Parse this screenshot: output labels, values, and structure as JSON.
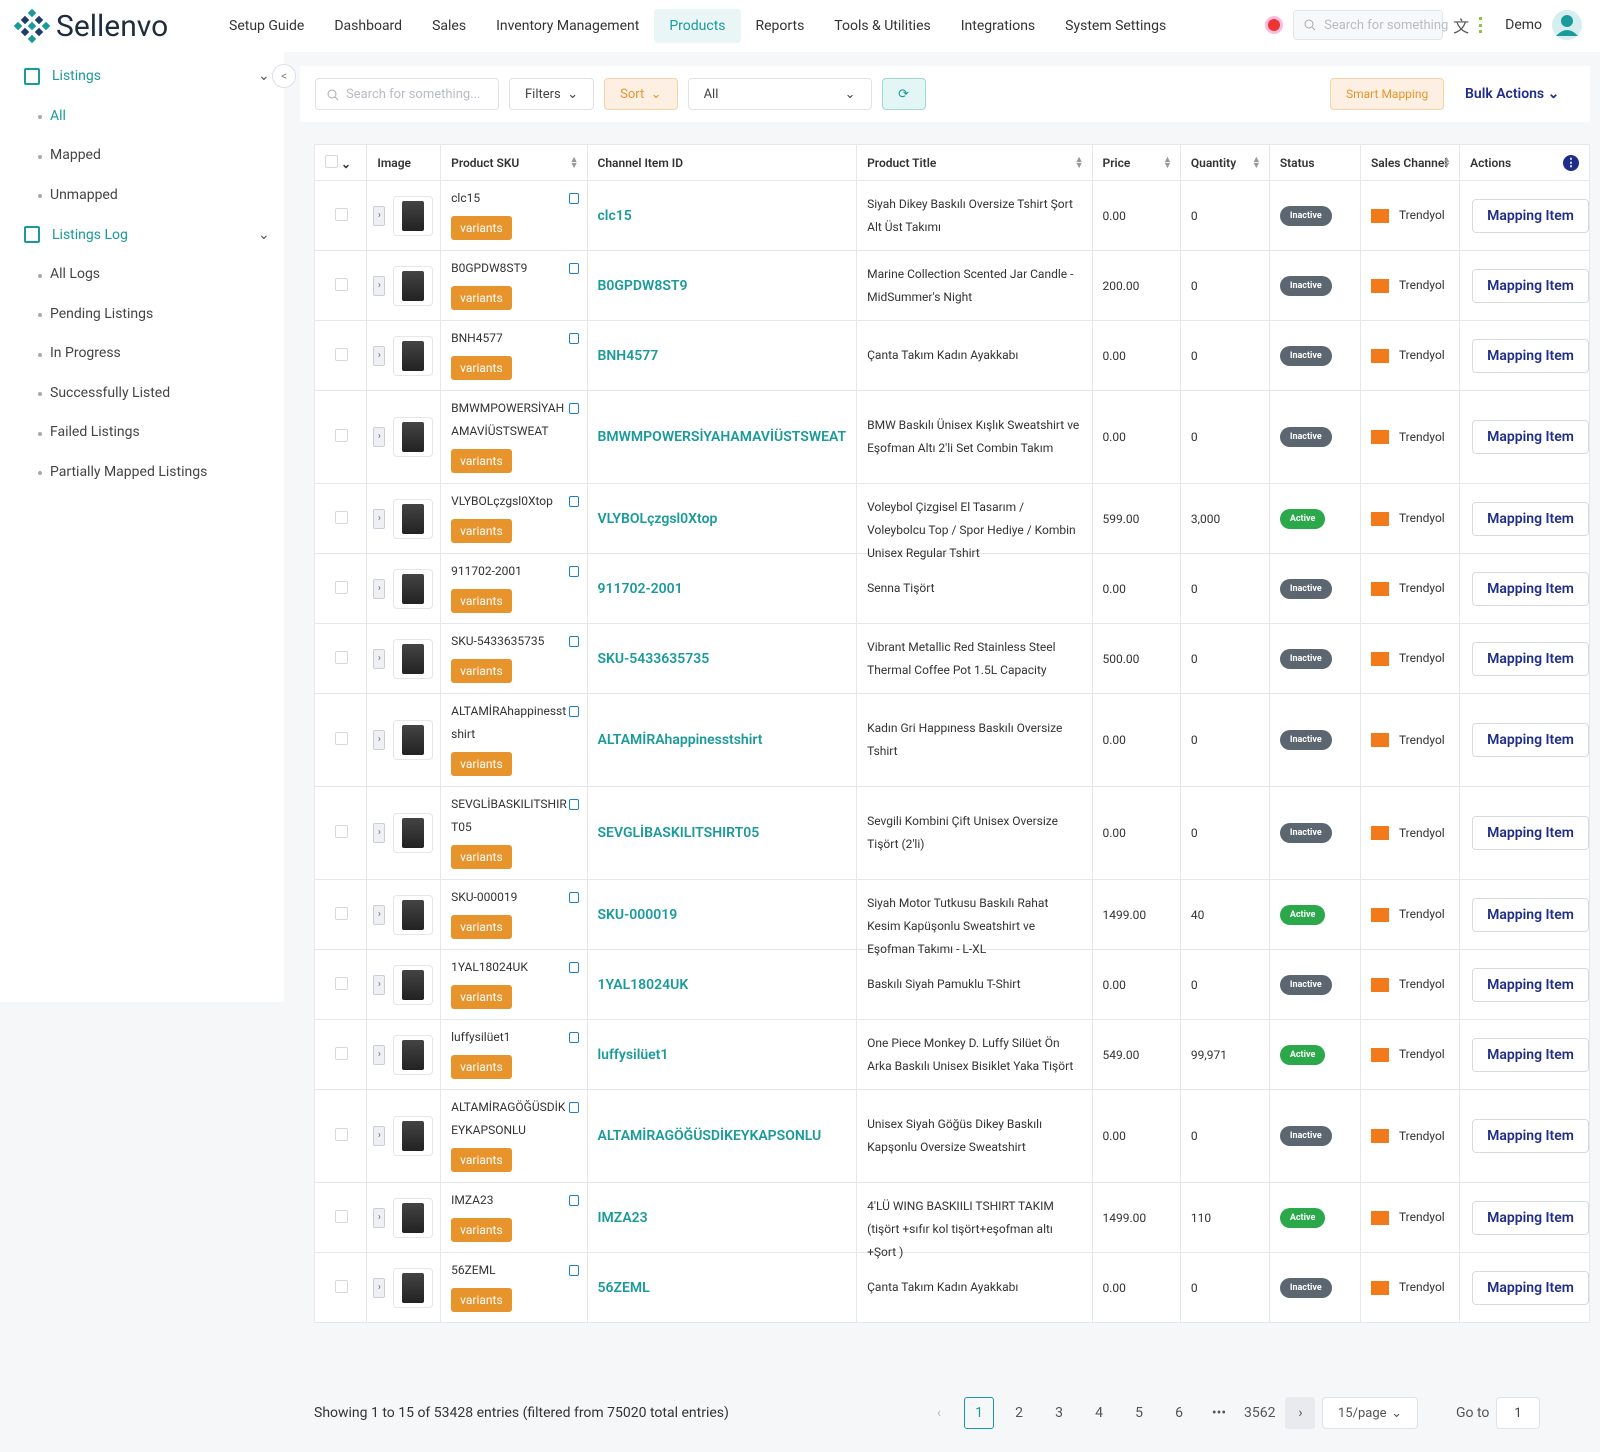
{
  "header": {
    "brand": "Sellenvo",
    "nav": [
      "Setup Guide",
      "Dashboard",
      "Sales",
      "Inventory Management",
      "Products",
      "Reports",
      "Tools & Utilities",
      "Integrations",
      "System Settings"
    ],
    "search_placeholder": "Search for something",
    "user": "Demo"
  },
  "sidebar": {
    "groups": [
      {
        "title": "Listings",
        "items": [
          "All",
          "Mapped",
          "Unmapped"
        ]
      },
      {
        "title": "Listings Log",
        "items": [
          "All Logs",
          "Pending Listings",
          "In Progress",
          "Successfully Listed",
          "Failed Listings",
          "Partially Mapped Listings"
        ]
      }
    ]
  },
  "toolbar": {
    "search_placeholder": "Search for something...",
    "filters": "Filters",
    "sort": "Sort",
    "select": "All",
    "smart_mapping": "Smart Mapping",
    "bulk_actions": "Bulk Actions"
  },
  "table": {
    "columns": [
      "Image",
      "Product SKU",
      "Channel Item ID",
      "Product Title",
      "Price",
      "Quantity",
      "Status",
      "Sales Channel",
      "Actions"
    ],
    "variants_label": "variants",
    "action_label": "Mapping Item",
    "rows": [
      {
        "sku": "clc15",
        "channel_item_id": "clc15",
        "title": "Siyah Dikey Baskılı Oversize Tshirt Şort Alt Üst Takımı",
        "price": "0.00",
        "quantity": "0",
        "status": "Inactive",
        "status_color": "#5b6670",
        "channel": "Trendyol"
      },
      {
        "sku": "B0GPDW8ST9",
        "channel_item_id": "B0GPDW8ST9",
        "title": "Marine Collection Scented Jar Candle - MidSummer's Night",
        "price": "200.00",
        "quantity": "0",
        "status": "Inactive",
        "status_color": "#5b6670",
        "channel": "Trendyol"
      },
      {
        "sku": "BNH4577",
        "channel_item_id": "BNH4577",
        "title": "Çanta Takım Kadın Ayakkabı",
        "price": "0.00",
        "quantity": "0",
        "status": "Inactive",
        "status_color": "#5b6670",
        "channel": "Trendyol"
      },
      {
        "sku": "BMWMPOWERSİYAHAMAVİÜSTSWEAT",
        "channel_item_id": "BMWMPOWERSİYAHAMAVİÜSTSWEAT",
        "title": "BMW Baskılı Ünisex Kışlık Sweatshirt ve Eşofman Altı 2'li Set Combin Takım",
        "price": "0.00",
        "quantity": "0",
        "status": "Inactive",
        "status_color": "#5b6670",
        "channel": "Trendyol"
      },
      {
        "sku": "VLYBOLçzgsl0Xtop",
        "channel_item_id": "VLYBOLçzgsl0Xtop",
        "title": "Voleybol Çizgisel El Tasarım / Voleybolcu Top / Spor Hediye / Kombin Unisex Regular Tshirt",
        "price": "599.00",
        "quantity": "3,000",
        "status": "Active",
        "status_color": "#2aa84a",
        "channel": "Trendyol"
      },
      {
        "sku": "911702-2001",
        "channel_item_id": "911702-2001",
        "title": "Senna Tişört",
        "price": "0.00",
        "quantity": "0",
        "status": "Inactive",
        "status_color": "#5b6670",
        "channel": "Trendyol"
      },
      {
        "sku": "SKU-5433635735",
        "channel_item_id": "SKU-5433635735",
        "title": "Vibrant Metallic Red Stainless Steel Thermal Coffee Pot 1.5L Capacity",
        "price": "500.00",
        "quantity": "0",
        "status": "Inactive",
        "status_color": "#5b6670",
        "channel": "Trendyol"
      },
      {
        "sku": "ALTAMİRAhappinesstshirt",
        "channel_item_id": "ALTAMİRAhappinesstshirt",
        "title": "Kadın Gri Happıness Baskılı Oversize Tshirt",
        "price": "0.00",
        "quantity": "0",
        "status": "Inactive",
        "status_color": "#5b6670",
        "channel": "Trendyol"
      },
      {
        "sku": "SEVGLİBASKILITSHIRT05",
        "channel_item_id": "SEVGLİBASKILITSHIRT05",
        "title": "Sevgili Kombini Çift Unisex Oversize Tişört (2'li)",
        "price": "0.00",
        "quantity": "0",
        "status": "Inactive",
        "status_color": "#5b6670",
        "channel": "Trendyol"
      },
      {
        "sku": "SKU-000019",
        "channel_item_id": "SKU-000019",
        "title": "Siyah Motor Tutkusu Baskılı Rahat Kesim Kapüşonlu Sweatshirt ve Eşofman Takımı - L-XL",
        "price": "1499.00",
        "quantity": "40",
        "status": "Active",
        "status_color": "#2aa84a",
        "channel": "Trendyol"
      },
      {
        "sku": "1YAL18024UK",
        "channel_item_id": "1YAL18024UK",
        "title": "Baskılı Siyah Pamuklu T-Shirt",
        "price": "0.00",
        "quantity": "0",
        "status": "Inactive",
        "status_color": "#5b6670",
        "channel": "Trendyol"
      },
      {
        "sku": "luffysilüet1",
        "channel_item_id": "luffysilüet1",
        "title": "One Piece Monkey D. Luffy Silüet Ön Arka Baskılı Unisex Bisiklet Yaka Tişört",
        "price": "549.00",
        "quantity": "99,971",
        "status": "Active",
        "status_color": "#2aa84a",
        "channel": "Trendyol"
      },
      {
        "sku": "ALTAMİRAGÖĞÜSDİKEYKAPSONLU",
        "channel_item_id": "ALTAMİRAGÖĞÜSDİKEYKAPSONLU",
        "title": "Unisex Siyah Göğüs Dikey Baskılı Kapşonlu Oversize Sweatshirt",
        "price": "0.00",
        "quantity": "0",
        "status": "Inactive",
        "status_color": "#5b6670",
        "channel": "Trendyol"
      },
      {
        "sku": "IMZA23",
        "channel_item_id": "IMZA23",
        "title": "4'LÜ WING BASKIILI TSHIRT TAKIM (tişört +sıfır kol tişört+eşofman altı +Şort )",
        "price": "1499.00",
        "quantity": "110",
        "status": "Active",
        "status_color": "#2aa84a",
        "channel": "Trendyol"
      },
      {
        "sku": "56ZEML",
        "channel_item_id": "56ZEML",
        "title": "Çanta Takım Kadın Ayakkabı",
        "price": "0.00",
        "quantity": "0",
        "status": "Inactive",
        "status_color": "#5b6670",
        "channel": "Trendyol"
      }
    ]
  },
  "pagination": {
    "summary": "Showing 1 to 15 of 53428 entries (filtered from 75020 total entries)",
    "pages": [
      "1",
      "2",
      "3",
      "4",
      "5",
      "6",
      "3562"
    ],
    "page_size": "15/page",
    "goto": "Go to",
    "goto_value": "1"
  }
}
